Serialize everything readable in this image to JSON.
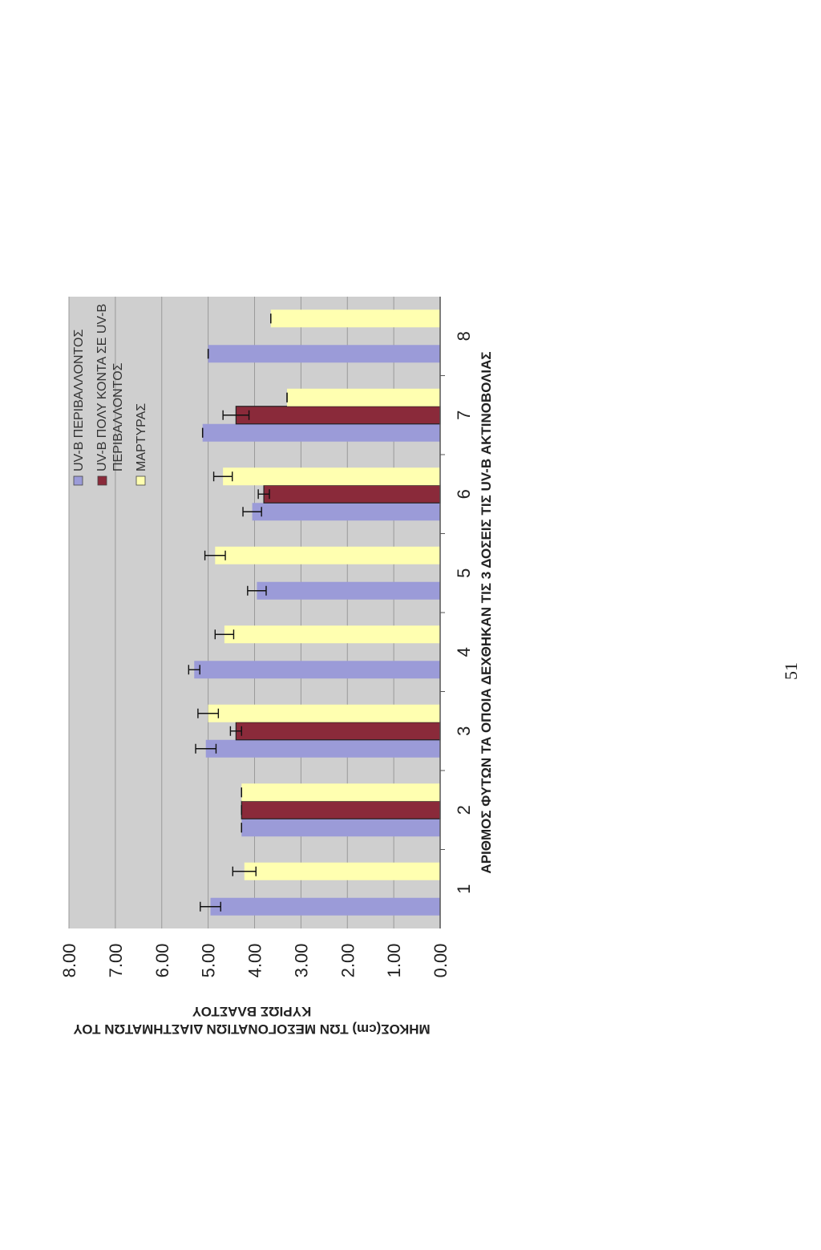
{
  "chart_data": {
    "type": "bar",
    "orientation": "horizontal-bars (page rotated 90°)",
    "xlabel": "ΑΡΙΘΜΟΣ ΦΥΤΩΝ ΤΑ ΟΠΟΙΑ ΔΕΧΘΗΚΑΝ ΤΙΣ 3 ΔΟΣΕΙΣ ΤΙΣ UV-B ΑΚΤΙΝΟΒΟΛΙΑΣ",
    "ylabel_line1": "ΜΗΚΟΣ(cm) ΤΩΝ ΜΕΣΟΓΟΝΑΤΙΩΝ ΔΙΑΣΤΗΜΑΤΩΝ ΤΟΥ",
    "ylabel_line2": "ΚΥΡΙΩΣ ΒΛΑΣΤΟΥ",
    "ylim": [
      0,
      8
    ],
    "yticks": [
      "0.00",
      "1.00",
      "2.00",
      "3.00",
      "4.00",
      "5.00",
      "6.00",
      "7.00",
      "8.00"
    ],
    "categories": [
      "1",
      "2",
      "3",
      "4",
      "5",
      "6",
      "7",
      "8"
    ],
    "grid": true,
    "legend_position": "top-right",
    "series": [
      {
        "name": "UV-B ΠΕΡΙΒΑΛΛΟΝΤΟΣ",
        "color": "#9b9bd8",
        "values": [
          4.95,
          4.28,
          5.05,
          5.3,
          3.95,
          4.05,
          5.12,
          5.0
        ],
        "errors": [
          0.22,
          0.0,
          0.22,
          0.12,
          0.2,
          0.2,
          0.0,
          0.0
        ]
      },
      {
        "name": "UV-B ΠΟΛΥ ΚΟΝΤΑ ΣΕ UV-B ΠΕΡΙΒΑΛΛΟΝΤΟΣ",
        "color": "#8a2a3a",
        "values": [
          null,
          4.28,
          4.4,
          null,
          null,
          3.8,
          4.4,
          null
        ],
        "errors": [
          0,
          0.0,
          0.12,
          0,
          0,
          0.12,
          0.28,
          0
        ]
      },
      {
        "name": "ΜΑΡΤΥΡΑΣ",
        "color": "#ffffb0",
        "values": [
          4.22,
          4.28,
          5.0,
          4.65,
          4.85,
          4.68,
          3.3,
          3.65
        ],
        "errors": [
          0.25,
          0.0,
          0.22,
          0.2,
          0.22,
          0.2,
          0.0,
          0.0
        ]
      }
    ]
  },
  "page_number": "51"
}
